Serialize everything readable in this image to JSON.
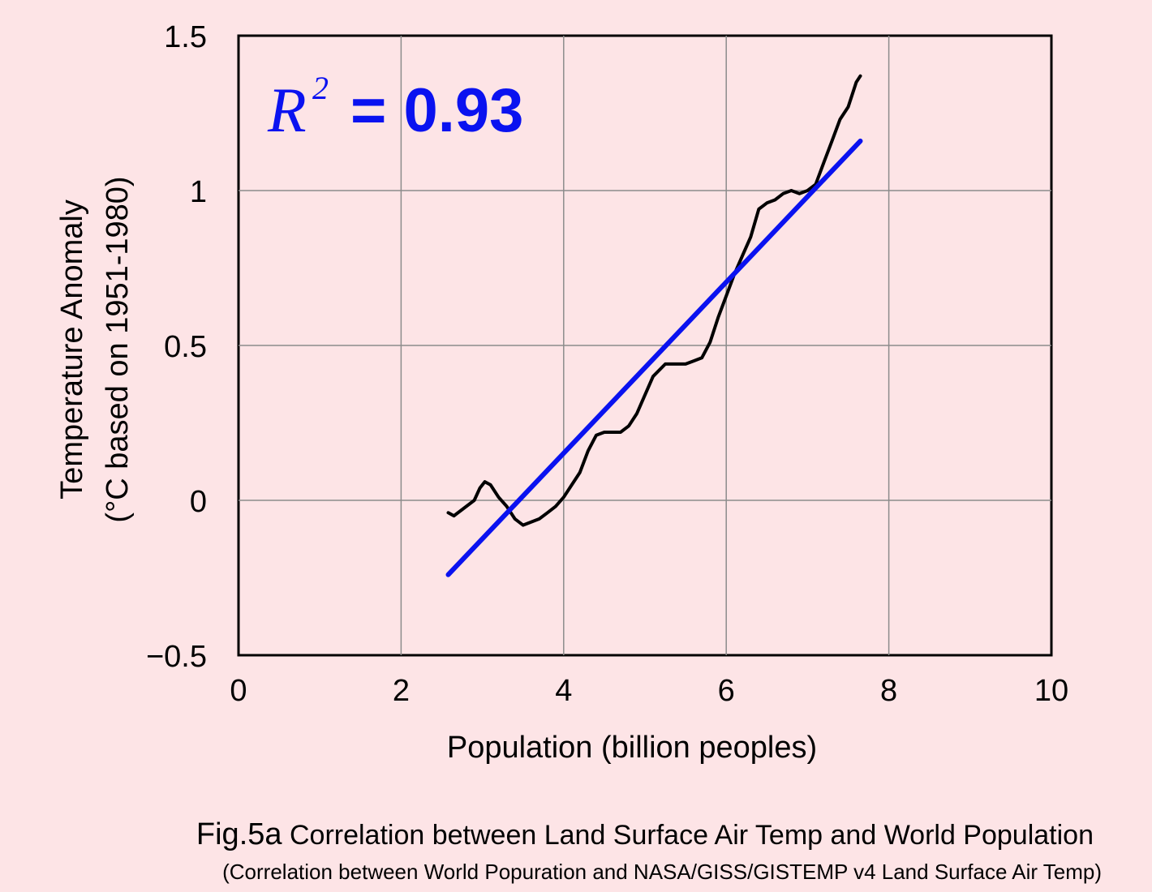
{
  "chart_data": {
    "type": "line",
    "xlabel": "Population (billion peoples)",
    "ylabel_line1": "Temperature Anomaly",
    "ylabel_line2": "(°C based on 1951-1980)",
    "xlim": [
      0,
      10
    ],
    "ylim": [
      -0.5,
      1.5
    ],
    "x_ticks": [
      0,
      2,
      4,
      6,
      8,
      10
    ],
    "y_ticks": [
      -0.5,
      0,
      0.5,
      1,
      1.5
    ],
    "x_tick_labels": [
      "0",
      "2",
      "4",
      "6",
      "8",
      "10"
    ],
    "y_tick_labels": [
      "−0.5",
      "0",
      "0.5",
      "1",
      "1.5"
    ],
    "grid": true,
    "annotation": {
      "r_symbol": "R",
      "r_exponent": "2",
      "r_value": "= 0.93"
    },
    "series": [
      {
        "color": "#000000",
        "points": [
          [
            2.58,
            -0.04
          ],
          [
            2.65,
            -0.05
          ],
          [
            2.75,
            -0.03
          ],
          [
            2.9,
            0.0
          ],
          [
            2.97,
            0.04
          ],
          [
            3.03,
            0.06
          ],
          [
            3.1,
            0.05
          ],
          [
            3.2,
            0.01
          ],
          [
            3.3,
            -0.02
          ],
          [
            3.4,
            -0.06
          ],
          [
            3.5,
            -0.08
          ],
          [
            3.6,
            -0.07
          ],
          [
            3.7,
            -0.06
          ],
          [
            3.8,
            -0.04
          ],
          [
            3.9,
            -0.02
          ],
          [
            4.0,
            0.01
          ],
          [
            4.1,
            0.05
          ],
          [
            4.2,
            0.09
          ],
          [
            4.3,
            0.16
          ],
          [
            4.4,
            0.21
          ],
          [
            4.5,
            0.22
          ],
          [
            4.6,
            0.22
          ],
          [
            4.7,
            0.22
          ],
          [
            4.8,
            0.24
          ],
          [
            4.9,
            0.28
          ],
          [
            5.0,
            0.34
          ],
          [
            5.1,
            0.4
          ],
          [
            5.25,
            0.44
          ],
          [
            5.4,
            0.44
          ],
          [
            5.5,
            0.44
          ],
          [
            5.6,
            0.45
          ],
          [
            5.7,
            0.46
          ],
          [
            5.8,
            0.51
          ],
          [
            5.9,
            0.59
          ],
          [
            6.0,
            0.66
          ],
          [
            6.1,
            0.73
          ],
          [
            6.2,
            0.79
          ],
          [
            6.3,
            0.85
          ],
          [
            6.4,
            0.94
          ],
          [
            6.5,
            0.96
          ],
          [
            6.6,
            0.97
          ],
          [
            6.7,
            0.99
          ],
          [
            6.8,
            1.0
          ],
          [
            6.9,
            0.99
          ],
          [
            7.0,
            1.0
          ],
          [
            7.1,
            1.02
          ],
          [
            7.2,
            1.09
          ],
          [
            7.3,
            1.16
          ],
          [
            7.4,
            1.23
          ],
          [
            7.5,
            1.27
          ],
          [
            7.6,
            1.35
          ],
          [
            7.65,
            1.37
          ]
        ]
      },
      {
        "color": "#0a12f0",
        "points": [
          [
            2.58,
            -0.24
          ],
          [
            7.65,
            1.16
          ]
        ]
      }
    ]
  },
  "caption": {
    "fig_label": "Fig.5a",
    "title": "Correlation between Land Surface Air Temp and World Population",
    "subtitle": "(Correlation between World Popuration and NASA/GISS/GISTEMP v4 Land Surface Air Temp)"
  }
}
